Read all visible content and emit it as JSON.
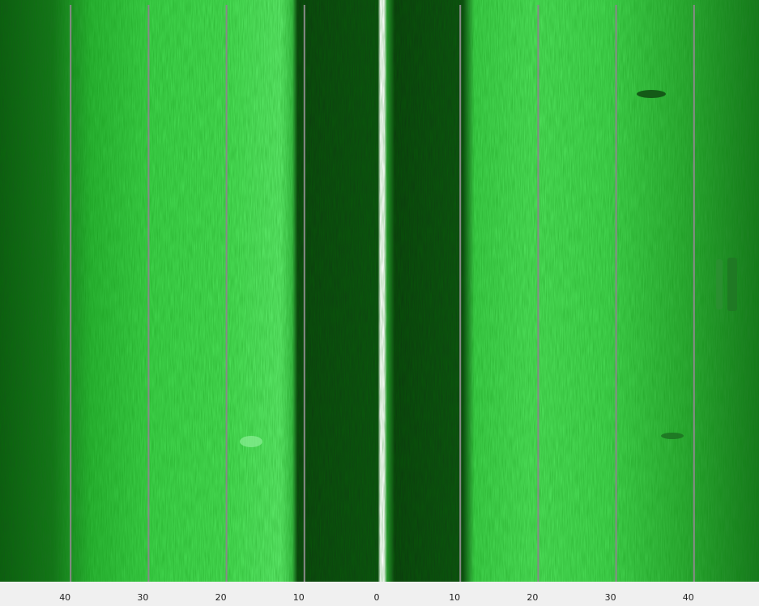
{
  "range_scale": {
    "labels": [
      40,
      30,
      20,
      10,
      0,
      10,
      20,
      30,
      40
    ]
  }
}
